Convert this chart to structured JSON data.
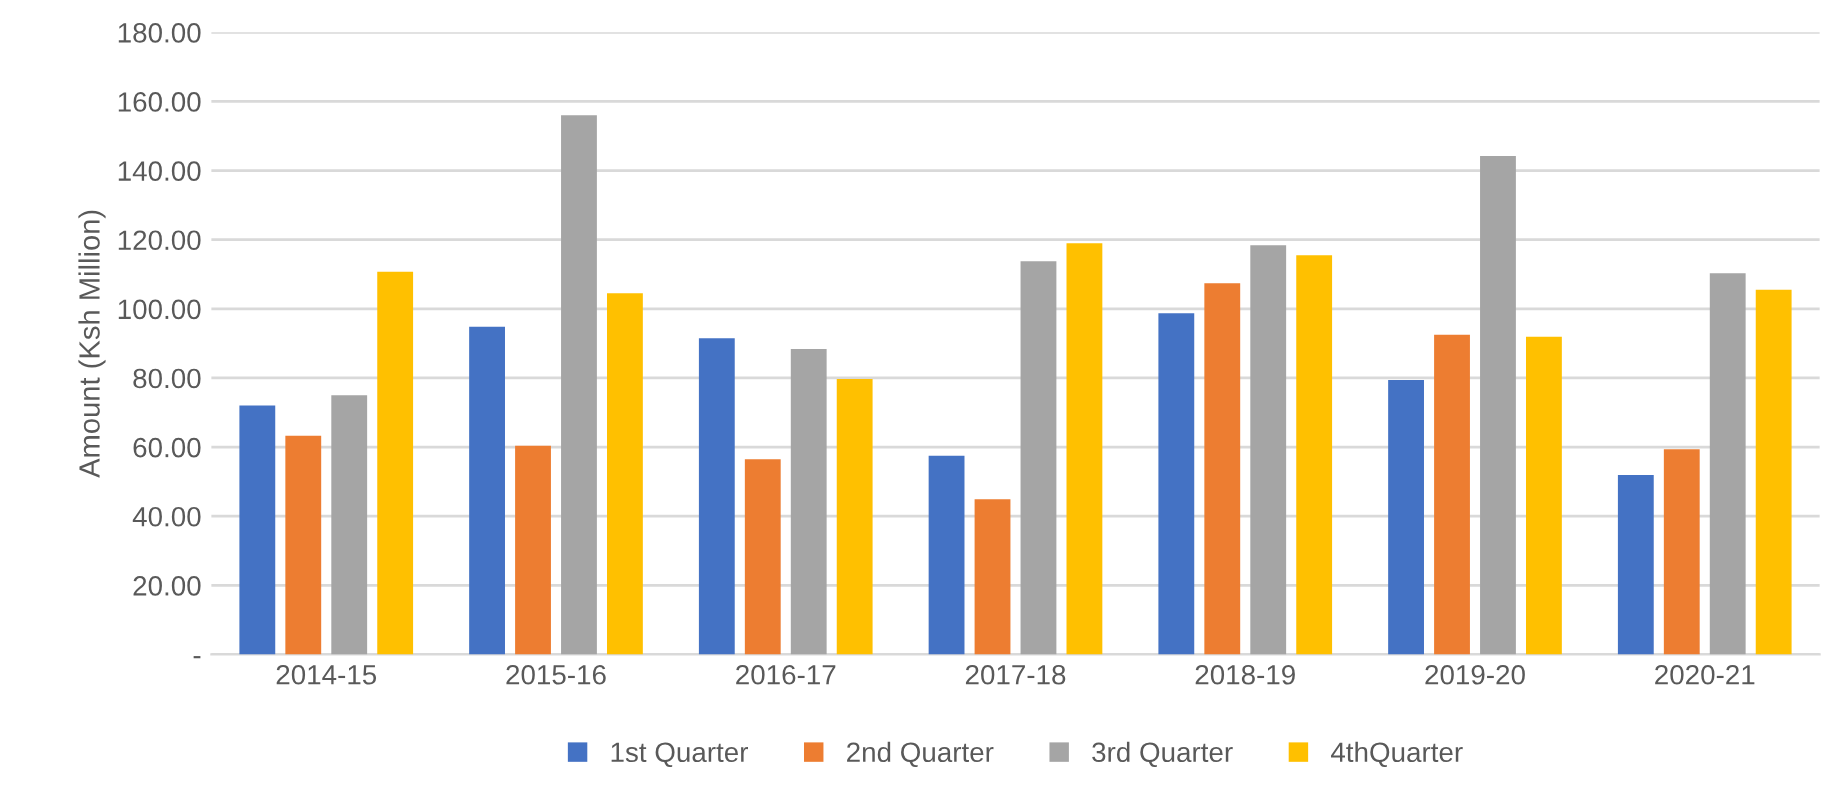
{
  "chart_data": {
    "type": "bar",
    "ylabel": "Amount (Ksh Million)",
    "categories": [
      "2014-15",
      "2015-16",
      "2016-17",
      "2017-18",
      "2018-19",
      "2019-20",
      "2020-21"
    ],
    "series": [
      {
        "name": "1st Quarter",
        "color": "#4472c4",
        "values": [
          72.0,
          94.8,
          91.5,
          57.5,
          98.7,
          79.4,
          51.9
        ]
      },
      {
        "name": "2nd Quarter",
        "color": "#ed7d31",
        "values": [
          63.3,
          60.4,
          56.5,
          44.9,
          107.4,
          92.5,
          59.4
        ]
      },
      {
        "name": "3rd Quarter",
        "color": "#a5a5a5",
        "values": [
          75.0,
          156.0,
          88.4,
          113.8,
          118.4,
          144.2,
          110.3
        ]
      },
      {
        "name": "4thQuarter",
        "color": "#ffc000",
        "values": [
          110.7,
          104.5,
          79.7,
          119.0,
          115.5,
          91.9,
          105.5
        ]
      }
    ],
    "ylim": [
      0,
      180
    ],
    "yticks": [
      {
        "value": 0,
        "label": "-"
      },
      {
        "value": 20,
        "label": "20.00"
      },
      {
        "value": 40,
        "label": "40.00"
      },
      {
        "value": 60,
        "label": "60.00"
      },
      {
        "value": 80,
        "label": "80.00"
      },
      {
        "value": 100,
        "label": "100.00"
      },
      {
        "value": 120,
        "label": "120.00"
      },
      {
        "value": 140,
        "label": "140.00"
      },
      {
        "value": 160,
        "label": "160.00"
      },
      {
        "value": 180,
        "label": "180.00"
      }
    ],
    "grid": "y",
    "legend": "bottom"
  }
}
